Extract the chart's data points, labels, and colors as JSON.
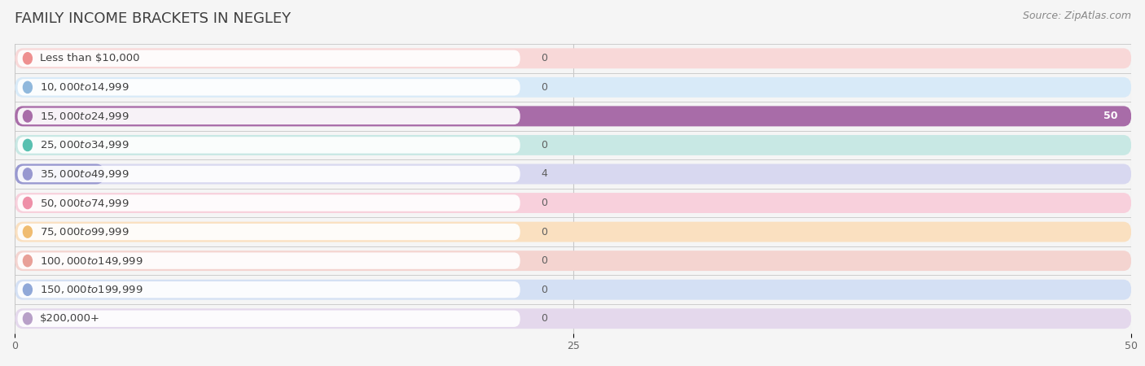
{
  "title": "FAMILY INCOME BRACKETS IN NEGLEY",
  "source": "Source: ZipAtlas.com",
  "categories": [
    "Less than $10,000",
    "$10,000 to $14,999",
    "$15,000 to $24,999",
    "$25,000 to $34,999",
    "$35,000 to $49,999",
    "$50,000 to $74,999",
    "$75,000 to $99,999",
    "$100,000 to $149,999",
    "$150,000 to $199,999",
    "$200,000+"
  ],
  "values": [
    0,
    0,
    50,
    0,
    4,
    0,
    0,
    0,
    0,
    0
  ],
  "bar_colors": [
    "#EE9090",
    "#90B8DC",
    "#A86CA8",
    "#58C0B0",
    "#9898D0",
    "#EE90A8",
    "#F0BC70",
    "#E8A098",
    "#90A8D8",
    "#B8A0C8"
  ],
  "label_bg_colors": [
    "#F8D8D8",
    "#D8EAF8",
    "#E0D0E0",
    "#C8E8E4",
    "#D8D8F0",
    "#F8D0DC",
    "#FAE0C0",
    "#F4D4D0",
    "#D4E0F4",
    "#E4D8EC"
  ],
  "row_bg_colors": [
    "#F9EDED",
    "#EDF3FA",
    "#F0E8F0",
    "#E8F5F3",
    "#EEEEF8",
    "#F9ECF0",
    "#FCF2E4",
    "#F8EDEB",
    "#EBF0F9",
    "#F3EEF6"
  ],
  "xlim": [
    0,
    50
  ],
  "xticks": [
    0,
    25,
    50
  ],
  "background_color": "#f0f0f0",
  "title_fontsize": 13,
  "label_fontsize": 9.5,
  "value_fontsize": 9,
  "source_fontsize": 9
}
